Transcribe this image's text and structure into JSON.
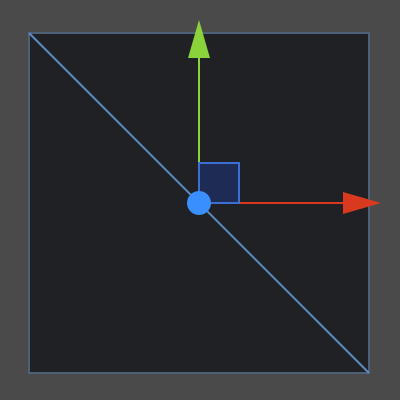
{
  "scene": {
    "name": "transform-gizmo-viewport"
  },
  "icons": {
    "x_axis": "x-axis-arrow-icon",
    "y_axis": "y-axis-arrow-icon",
    "xy_plane": "xy-plane-handle-icon",
    "pivot": "pivot-handle-icon"
  },
  "colors": {
    "outer_background": "#4a4a4a",
    "viewport_fill": "#202124",
    "viewport_border": "#4e5f78",
    "diagonal": "#5b8cc4",
    "x_axis": "#d93a1f",
    "y_axis": "#8bd33a",
    "plane_fill": "#1d2b55",
    "plane_border": "#3b6fd6",
    "pivot": "#3a8fff"
  }
}
